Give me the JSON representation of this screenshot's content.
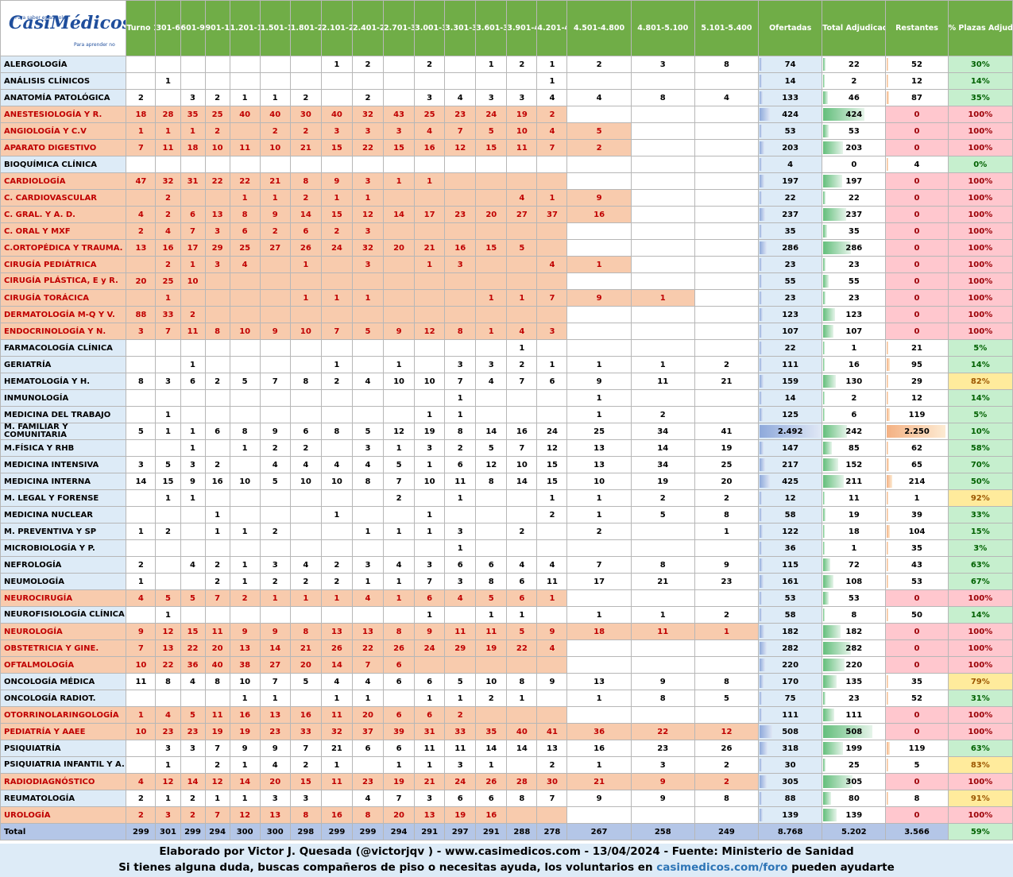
{
  "logo": {
    "top": "Para saber estas solo",
    "name": "CasiMédicos",
    "sub": "Para aprender no"
  },
  "headers": [
    "Turno 1-300",
    "301-600",
    "601-900",
    "901-1200",
    "1.201-1.500",
    "1.501-1.800",
    "1.801-2.100",
    "2.101-2.400",
    "2.401-2.700",
    "2.701-3.000",
    "3.001-3.300",
    "3.301-3.600",
    "3.601-3.900",
    "3.901-4.200",
    "4.201-4.500",
    "4.501-4.800",
    "4.801-5.100",
    "5.101-5.400",
    "Ofertadas",
    "Total Adjudicadas",
    "Restantes",
    "% Plazas Adjudicadas"
  ],
  "rows": [
    {
      "n": "ALERGOLOGÍA",
      "r": [
        "",
        "",
        "",
        "",
        "",
        "",
        "",
        "1",
        "2",
        "",
        "2",
        "",
        "1",
        "2",
        "1",
        "2",
        "3",
        "8"
      ],
      "o": "74",
      "a": "22",
      "re": "52",
      "p": "30%"
    },
    {
      "n": "ANÁLISIS CLÍNICOS",
      "r": [
        "",
        "1",
        "",
        "",
        "",
        "",
        "",
        "",
        "",
        "",
        "",
        "",
        "",
        "",
        "1",
        "",
        "",
        ""
      ],
      "o": "14",
      "a": "2",
      "re": "12",
      "p": "14%"
    },
    {
      "n": "ANATOMÍA PATOLÓGICA",
      "r": [
        "2",
        "",
        "3",
        "2",
        "1",
        "1",
        "2",
        "",
        "2",
        "",
        "3",
        "4",
        "3",
        "3",
        "4",
        "4",
        "8",
        "4"
      ],
      "o": "133",
      "a": "46",
      "re": "87",
      "p": "35%"
    },
    {
      "n": "ANESTESIOLOGÍA Y R.",
      "r": [
        "18",
        "28",
        "35",
        "25",
        "40",
        "40",
        "30",
        "40",
        "32",
        "43",
        "25",
        "23",
        "24",
        "19",
        "2",
        "",
        "",
        ""
      ],
      "o": "424",
      "a": "424",
      "re": "0",
      "p": "100%"
    },
    {
      "n": "ANGIOLOGÍA Y C.V",
      "r": [
        "1",
        "1",
        "1",
        "2",
        "",
        "2",
        "2",
        "3",
        "3",
        "3",
        "4",
        "7",
        "5",
        "10",
        "4",
        "5",
        "",
        ""
      ],
      "o": "53",
      "a": "53",
      "re": "0",
      "p": "100%"
    },
    {
      "n": "APARATO DIGESTIVO",
      "r": [
        "7",
        "11",
        "18",
        "10",
        "11",
        "10",
        "21",
        "15",
        "22",
        "15",
        "16",
        "12",
        "15",
        "11",
        "7",
        "2",
        "",
        ""
      ],
      "o": "203",
      "a": "203",
      "re": "0",
      "p": "100%"
    },
    {
      "n": "BIOQUÍMICA CLÍNICA",
      "r": [
        "",
        "",
        "",
        "",
        "",
        "",
        "",
        "",
        "",
        "",
        "",
        "",
        "",
        "",
        "",
        "",
        "",
        ""
      ],
      "o": "4",
      "a": "0",
      "re": "4",
      "p": "0%"
    },
    {
      "n": "CARDIOLOGÍA",
      "r": [
        "47",
        "32",
        "31",
        "22",
        "22",
        "21",
        "8",
        "9",
        "3",
        "1",
        "1",
        "",
        "",
        "",
        "",
        "",
        "",
        ""
      ],
      "o": "197",
      "a": "197",
      "re": "0",
      "p": "100%"
    },
    {
      "n": "C. CARDIOVASCULAR",
      "r": [
        "",
        "2",
        "",
        "",
        "1",
        "1",
        "2",
        "1",
        "1",
        "",
        "",
        "",
        "",
        "4",
        "1",
        "9",
        "",
        ""
      ],
      "o": "22",
      "a": "22",
      "re": "0",
      "p": "100%"
    },
    {
      "n": "C. GRAL. Y A. D.",
      "r": [
        "4",
        "2",
        "6",
        "13",
        "8",
        "9",
        "14",
        "15",
        "12",
        "14",
        "17",
        "23",
        "20",
        "27",
        "37",
        "16",
        "",
        ""
      ],
      "o": "237",
      "a": "237",
      "re": "0",
      "p": "100%"
    },
    {
      "n": "C. ORAL Y MXF",
      "r": [
        "2",
        "4",
        "7",
        "3",
        "6",
        "2",
        "6",
        "2",
        "3",
        "",
        "",
        "",
        "",
        "",
        "",
        "",
        "",
        ""
      ],
      "o": "35",
      "a": "35",
      "re": "0",
      "p": "100%"
    },
    {
      "n": "C.ORTOPÉDICA Y TRAUMA.",
      "r": [
        "13",
        "16",
        "17",
        "29",
        "25",
        "27",
        "26",
        "24",
        "32",
        "20",
        "21",
        "16",
        "15",
        "5",
        "",
        "",
        "",
        ""
      ],
      "o": "286",
      "a": "286",
      "re": "0",
      "p": "100%"
    },
    {
      "n": "CIRUGÍA PEDIÁTRICA",
      "r": [
        "",
        "2",
        "1",
        "3",
        "4",
        "",
        "1",
        "",
        "3",
        "",
        "1",
        "3",
        "",
        "",
        "4",
        "1",
        "",
        ""
      ],
      "o": "23",
      "a": "23",
      "re": "0",
      "p": "100%"
    },
    {
      "n": "CIRUGÍA PLÁSTICA, E y R.",
      "r": [
        "20",
        "25",
        "10",
        "",
        "",
        "",
        "",
        "",
        "",
        "",
        "",
        "",
        "",
        "",
        "",
        "",
        "",
        ""
      ],
      "o": "55",
      "a": "55",
      "re": "0",
      "p": "100%"
    },
    {
      "n": "CIRUGÍA TORÁCICA",
      "r": [
        "",
        "1",
        "",
        "",
        "",
        "",
        "1",
        "1",
        "1",
        "",
        "",
        "",
        "1",
        "1",
        "7",
        "9",
        "1",
        ""
      ],
      "o": "23",
      "a": "23",
      "re": "0",
      "p": "100%"
    },
    {
      "n": "DERMATOLOGÍA M-Q Y V.",
      "r": [
        "88",
        "33",
        "2",
        "",
        "",
        "",
        "",
        "",
        "",
        "",
        "",
        "",
        "",
        "",
        "",
        "",
        "",
        ""
      ],
      "o": "123",
      "a": "123",
      "re": "0",
      "p": "100%"
    },
    {
      "n": "ENDOCRINOLOGÍA Y N.",
      "r": [
        "3",
        "7",
        "11",
        "8",
        "10",
        "9",
        "10",
        "7",
        "5",
        "9",
        "12",
        "8",
        "1",
        "4",
        "3",
        "",
        "",
        ""
      ],
      "o": "107",
      "a": "107",
      "re": "0",
      "p": "100%"
    },
    {
      "n": "FARMACOLOGÍA CLÍNICA",
      "r": [
        "",
        "",
        "",
        "",
        "",
        "",
        "",
        "",
        "",
        "",
        "",
        "",
        "",
        "1",
        "",
        "",
        "",
        ""
      ],
      "o": "22",
      "a": "1",
      "re": "21",
      "p": "5%"
    },
    {
      "n": "GERIATRÍA",
      "r": [
        "",
        "",
        "1",
        "",
        "",
        "",
        "",
        "1",
        "",
        "1",
        "",
        "3",
        "3",
        "2",
        "1",
        "1",
        "1",
        "2"
      ],
      "o": "111",
      "a": "16",
      "re": "95",
      "p": "14%"
    },
    {
      "n": "HEMATOLOGÍA Y H.",
      "r": [
        "8",
        "3",
        "6",
        "2",
        "5",
        "7",
        "8",
        "2",
        "4",
        "10",
        "10",
        "7",
        "4",
        "7",
        "6",
        "9",
        "11",
        "21"
      ],
      "o": "159",
      "a": "130",
      "re": "29",
      "p": "82%"
    },
    {
      "n": "INMUNOLOGÍA",
      "r": [
        "",
        "",
        "",
        "",
        "",
        "",
        "",
        "",
        "",
        "",
        "",
        "1",
        "",
        "",
        "",
        "1",
        "",
        ""
      ],
      "o": "14",
      "a": "2",
      "re": "12",
      "p": "14%"
    },
    {
      "n": "MEDICINA DEL TRABAJO",
      "r": [
        "",
        "1",
        "",
        "",
        "",
        "",
        "",
        "",
        "",
        "",
        "1",
        "1",
        "",
        "",
        "",
        "1",
        "2",
        ""
      ],
      "o": "125",
      "a": "6",
      "re": "119",
      "p": "5%"
    },
    {
      "n": "M. FAMILIAR Y COMUNITARIA",
      "r": [
        "5",
        "1",
        "1",
        "6",
        "8",
        "9",
        "6",
        "8",
        "5",
        "12",
        "19",
        "8",
        "14",
        "16",
        "24",
        "25",
        "34",
        "41"
      ],
      "o": "2.492",
      "a": "242",
      "re": "2.250",
      "p": "10%"
    },
    {
      "n": "M.FÍSICA Y RHB",
      "r": [
        "",
        "",
        "1",
        "",
        "1",
        "2",
        "2",
        "",
        "3",
        "1",
        "3",
        "2",
        "5",
        "7",
        "12",
        "13",
        "14",
        "19"
      ],
      "o": "147",
      "a": "85",
      "re": "62",
      "p": "58%"
    },
    {
      "n": "MEDICINA INTENSIVA",
      "r": [
        "3",
        "5",
        "3",
        "2",
        "",
        "4",
        "4",
        "4",
        "4",
        "5",
        "1",
        "6",
        "12",
        "10",
        "15",
        "13",
        "34",
        "25"
      ],
      "o": "217",
      "a": "152",
      "re": "65",
      "p": "70%"
    },
    {
      "n": "MEDICINA INTERNA",
      "r": [
        "14",
        "15",
        "9",
        "16",
        "10",
        "5",
        "10",
        "10",
        "8",
        "7",
        "10",
        "11",
        "8",
        "14",
        "15",
        "10",
        "19",
        "20"
      ],
      "o": "425",
      "a": "211",
      "re": "214",
      "p": "50%"
    },
    {
      "n": "M. LEGAL Y FORENSE",
      "r": [
        "",
        "1",
        "1",
        "",
        "",
        "",
        "",
        "",
        "",
        "2",
        "",
        "1",
        "",
        "",
        "1",
        "1",
        "2",
        "2"
      ],
      "o": "12",
      "a": "11",
      "re": "1",
      "p": "92%"
    },
    {
      "n": "MEDICINA NUCLEAR",
      "r": [
        "",
        "",
        "",
        "1",
        "",
        "",
        "",
        "1",
        "",
        "",
        "1",
        "",
        "",
        "",
        "2",
        "1",
        "5",
        "8"
      ],
      "o": "58",
      "a": "19",
      "re": "39",
      "p": "33%"
    },
    {
      "n": "M. PREVENTIVA Y SP",
      "r": [
        "1",
        "2",
        "",
        "1",
        "1",
        "2",
        "",
        "",
        "1",
        "1",
        "1",
        "3",
        "",
        "2",
        "",
        "2",
        "",
        "1"
      ],
      "o": "122",
      "a": "18",
      "re": "104",
      "p": "15%"
    },
    {
      "n": "MICROBIOLOGÍA Y P.",
      "r": [
        "",
        "",
        "",
        "",
        "",
        "",
        "",
        "",
        "",
        "",
        "",
        "1",
        "",
        "",
        "",
        "",
        "",
        ""
      ],
      "o": "36",
      "a": "1",
      "re": "35",
      "p": "3%"
    },
    {
      "n": "NEFROLOGÍA",
      "r": [
        "2",
        "",
        "4",
        "2",
        "1",
        "3",
        "4",
        "2",
        "3",
        "4",
        "3",
        "6",
        "6",
        "4",
        "4",
        "7",
        "8",
        "9"
      ],
      "o": "115",
      "a": "72",
      "re": "43",
      "p": "63%"
    },
    {
      "n": "NEUMOLOGÍA",
      "r": [
        "1",
        "",
        "",
        "2",
        "1",
        "2",
        "2",
        "2",
        "1",
        "1",
        "7",
        "3",
        "8",
        "6",
        "11",
        "17",
        "21",
        "23"
      ],
      "o": "161",
      "a": "108",
      "re": "53",
      "p": "67%"
    },
    {
      "n": "NEUROCIRUGÍA",
      "r": [
        "4",
        "5",
        "5",
        "7",
        "2",
        "1",
        "1",
        "1",
        "4",
        "1",
        "6",
        "4",
        "5",
        "6",
        "1",
        "",
        "",
        ""
      ],
      "o": "53",
      "a": "53",
      "re": "0",
      "p": "100%"
    },
    {
      "n": "NEUROFISIOLOGÍA CLÍNICA",
      "r": [
        "",
        "1",
        "",
        "",
        "",
        "",
        "",
        "",
        "",
        "",
        "1",
        "",
        "1",
        "1",
        "",
        "1",
        "1",
        "2"
      ],
      "o": "58",
      "a": "8",
      "re": "50",
      "p": "14%"
    },
    {
      "n": "NEUROLOGÍA",
      "r": [
        "9",
        "12",
        "15",
        "11",
        "9",
        "9",
        "8",
        "13",
        "13",
        "8",
        "9",
        "11",
        "11",
        "5",
        "9",
        "18",
        "11",
        "1"
      ],
      "o": "182",
      "a": "182",
      "re": "0",
      "p": "100%"
    },
    {
      "n": "OBSTETRICIA Y GINE.",
      "r": [
        "7",
        "13",
        "22",
        "20",
        "13",
        "14",
        "21",
        "26",
        "22",
        "26",
        "24",
        "29",
        "19",
        "22",
        "4",
        "",
        "",
        ""
      ],
      "o": "282",
      "a": "282",
      "re": "0",
      "p": "100%"
    },
    {
      "n": "OFTALMOLOGÍA",
      "r": [
        "10",
        "22",
        "36",
        "40",
        "38",
        "27",
        "20",
        "14",
        "7",
        "6",
        "",
        "",
        "",
        "",
        "",
        "",
        "",
        ""
      ],
      "o": "220",
      "a": "220",
      "re": "0",
      "p": "100%"
    },
    {
      "n": "ONCOLOGÍA MÉDICA",
      "r": [
        "11",
        "8",
        "4",
        "8",
        "10",
        "7",
        "5",
        "4",
        "4",
        "6",
        "6",
        "5",
        "10",
        "8",
        "9",
        "13",
        "9",
        "8"
      ],
      "o": "170",
      "a": "135",
      "re": "35",
      "p": "79%"
    },
    {
      "n": "ONCOLOGÍA RADIOT.",
      "r": [
        "",
        "",
        "",
        "",
        "1",
        "1",
        "",
        "1",
        "1",
        "",
        "1",
        "1",
        "2",
        "1",
        "",
        "1",
        "8",
        "5"
      ],
      "o": "75",
      "a": "23",
      "re": "52",
      "p": "31%"
    },
    {
      "n": "OTORRINOLARINGOLOGÍA",
      "r": [
        "1",
        "4",
        "5",
        "11",
        "16",
        "13",
        "16",
        "11",
        "20",
        "6",
        "6",
        "2",
        "",
        "",
        "",
        "",
        "",
        ""
      ],
      "o": "111",
      "a": "111",
      "re": "0",
      "p": "100%"
    },
    {
      "n": "PEDIATRÍA Y AAEE",
      "r": [
        "10",
        "23",
        "23",
        "19",
        "19",
        "23",
        "33",
        "32",
        "37",
        "39",
        "31",
        "33",
        "35",
        "40",
        "41",
        "36",
        "22",
        "12"
      ],
      "o": "508",
      "a": "508",
      "re": "0",
      "p": "100%"
    },
    {
      "n": "PSIQUIATRÍA",
      "r": [
        "",
        "3",
        "3",
        "7",
        "9",
        "9",
        "7",
        "21",
        "6",
        "6",
        "11",
        "11",
        "14",
        "14",
        "13",
        "16",
        "23",
        "26"
      ],
      "o": "318",
      "a": "199",
      "re": "119",
      "p": "63%"
    },
    {
      "n": "PSIQUIATRIA INFANTIL Y A.",
      "r": [
        "",
        "1",
        "",
        "2",
        "1",
        "4",
        "2",
        "1",
        "",
        "1",
        "1",
        "3",
        "1",
        "",
        "2",
        "1",
        "3",
        "2"
      ],
      "o": "30",
      "a": "25",
      "re": "5",
      "p": "83%"
    },
    {
      "n": "RADIODIAGNÓSTICO",
      "r": [
        "4",
        "12",
        "14",
        "12",
        "14",
        "20",
        "15",
        "11",
        "23",
        "19",
        "21",
        "24",
        "26",
        "28",
        "30",
        "21",
        "9",
        "2"
      ],
      "o": "305",
      "a": "305",
      "re": "0",
      "p": "100%"
    },
    {
      "n": "REUMATOLOGÍA",
      "r": [
        "2",
        "1",
        "2",
        "1",
        "1",
        "3",
        "3",
        "",
        "4",
        "7",
        "3",
        "6",
        "6",
        "8",
        "7",
        "9",
        "9",
        "8"
      ],
      "o": "88",
      "a": "80",
      "re": "8",
      "p": "91%"
    },
    {
      "n": "UROLOGÍA",
      "r": [
        "2",
        "3",
        "2",
        "7",
        "12",
        "13",
        "8",
        "16",
        "8",
        "20",
        "13",
        "19",
        "16",
        "",
        "",
        "",
        "",
        ""
      ],
      "o": "139",
      "a": "139",
      "re": "0",
      "p": "100%"
    }
  ],
  "total": {
    "n": "Total",
    "r": [
      "299",
      "301",
      "299",
      "294",
      "300",
      "300",
      "298",
      "299",
      "299",
      "294",
      "291",
      "297",
      "291",
      "288",
      "278",
      "267",
      "258",
      "249"
    ],
    "o": "8.768",
    "a": "5.202",
    "re": "3.566",
    "p": "59%"
  },
  "footer": {
    "line1": "Elaborado por Victor J. Quesada (@victorjqv ) - www.casimedicos.com - 13/04/2024 -  Fuente: Ministerio de Sanidad",
    "line2a": "Si tienes alguna duda, buscas compañeros de piso o necesitas ayuda, los voluntarios en ",
    "line2link": "casimedicos.com/foro",
    "line2b": " pueden ayudarte"
  },
  "colors": {
    "header": "#70ad47",
    "full_row": "#f8cbad",
    "full_text": "#c00000",
    "open_row": "#ddebf7",
    "total_row": "#b4c6e7"
  }
}
